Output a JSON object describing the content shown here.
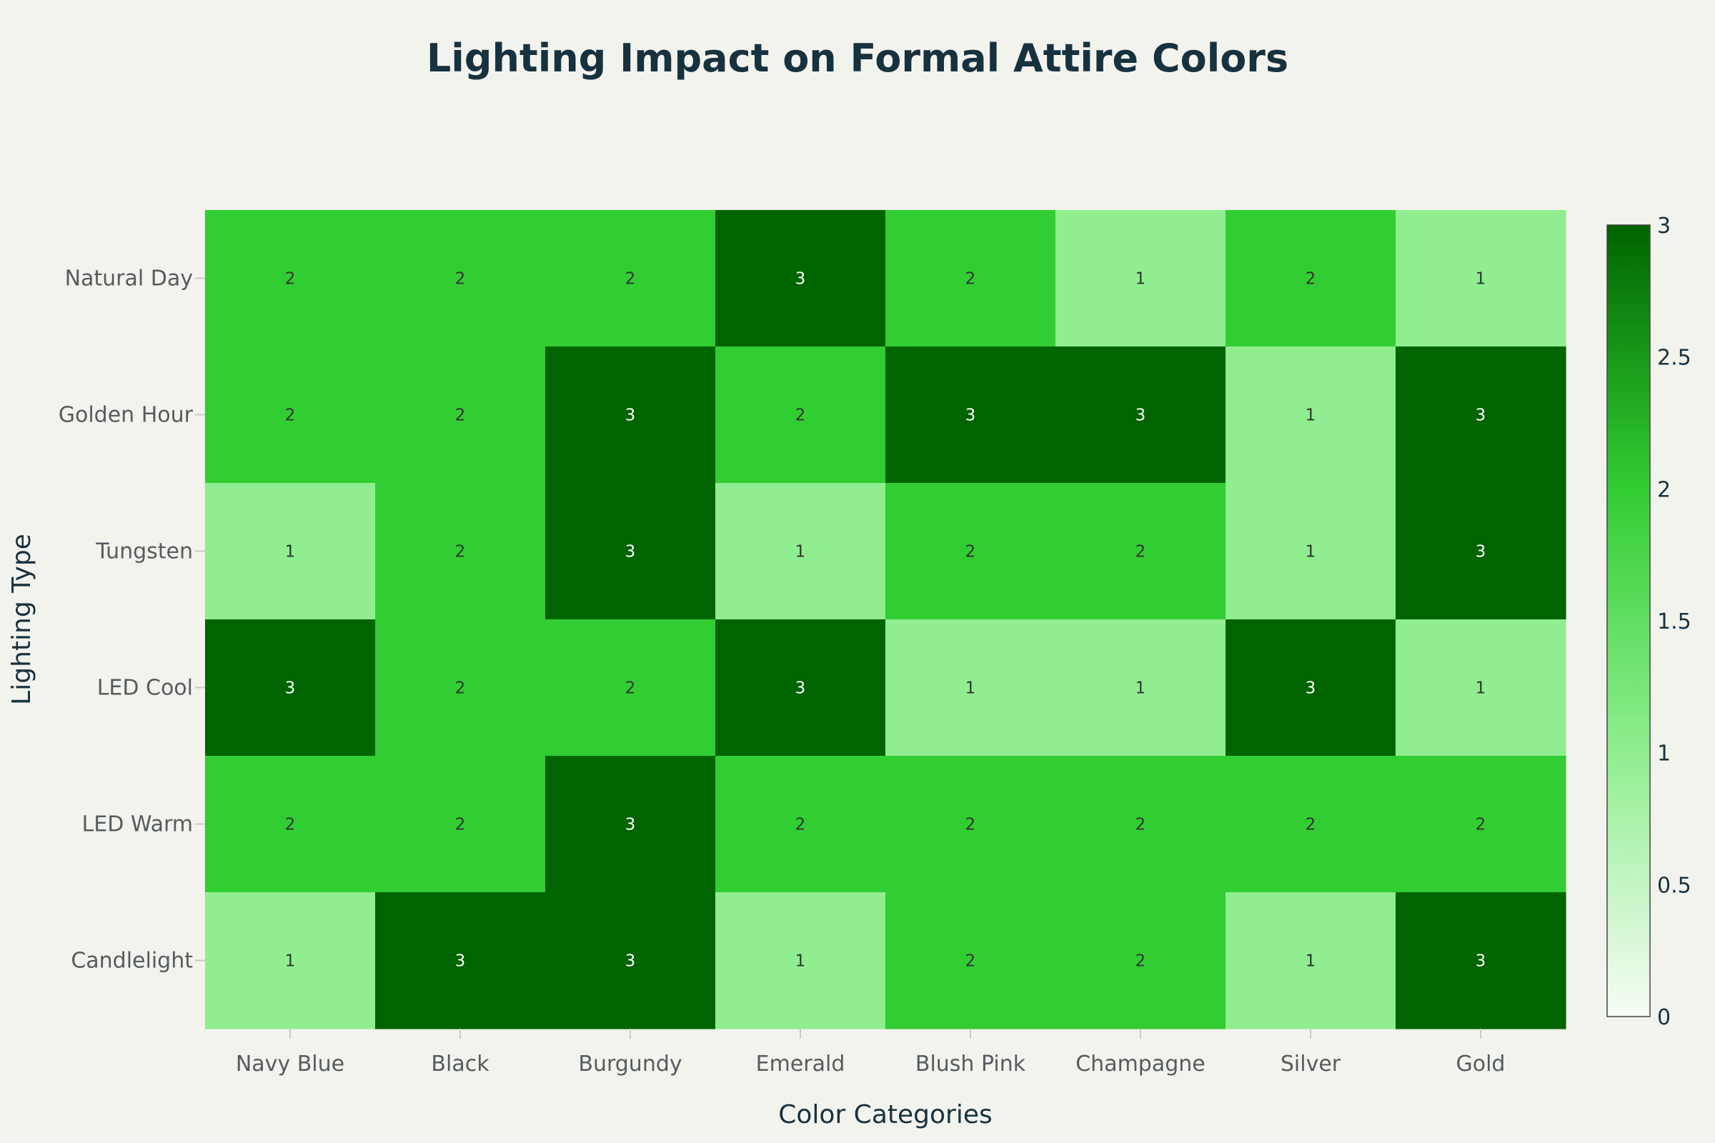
{
  "chart_data": {
    "type": "heatmap",
    "title": "Lighting Impact on Formal Attire Colors",
    "xlabel": "Color Categories",
    "ylabel": "Lighting Type",
    "x_categories": [
      "Navy Blue",
      "Black",
      "Burgundy",
      "Emerald",
      "Blush Pink",
      "Champagne",
      "Silver",
      "Gold"
    ],
    "y_categories": [
      "Natural Day",
      "Golden Hour",
      "Tungsten",
      "LED Cool",
      "LED Warm",
      "Candlelight"
    ],
    "values": [
      [
        2,
        2,
        2,
        3,
        2,
        1,
        2,
        1
      ],
      [
        2,
        2,
        3,
        2,
        3,
        3,
        1,
        3
      ],
      [
        1,
        2,
        3,
        1,
        2,
        2,
        1,
        3
      ],
      [
        3,
        2,
        2,
        3,
        1,
        1,
        3,
        1
      ],
      [
        2,
        2,
        3,
        2,
        2,
        2,
        2,
        2
      ],
      [
        1,
        3,
        3,
        1,
        2,
        2,
        1,
        3
      ]
    ],
    "colorscale": [
      {
        "value": 0,
        "color": "#f7fcf5"
      },
      {
        "value": 1,
        "color": "#90ee90"
      },
      {
        "value": 2,
        "color": "#32cd32"
      },
      {
        "value": 3,
        "color": "#006400"
      }
    ],
    "zlim": [
      0,
      3
    ],
    "colorbar_ticks": [
      "0",
      "0.5",
      "1",
      "1.5",
      "2",
      "2.5",
      "3"
    ],
    "grid": false,
    "legend": "colorbar-right"
  }
}
